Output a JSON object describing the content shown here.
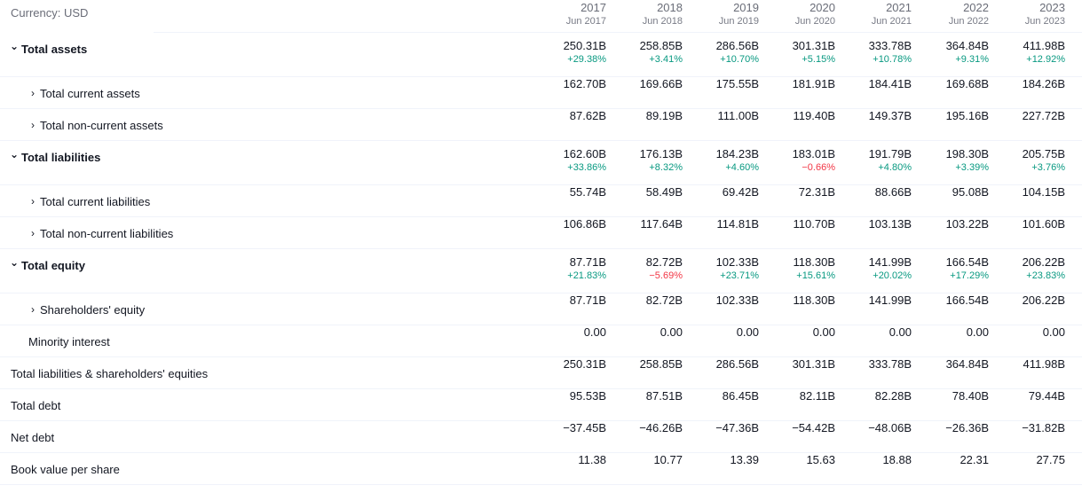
{
  "currency_label": "Currency: USD",
  "columns": [
    {
      "year": "2017",
      "date": "Jun 2017"
    },
    {
      "year": "2018",
      "date": "Jun 2018"
    },
    {
      "year": "2019",
      "date": "Jun 2019"
    },
    {
      "year": "2020",
      "date": "Jun 2020"
    },
    {
      "year": "2021",
      "date": "Jun 2021"
    },
    {
      "year": "2022",
      "date": "Jun 2022"
    },
    {
      "year": "2023",
      "date": "Jun 2023"
    }
  ],
  "colors": {
    "positive": "#089981",
    "negative": "#f23645"
  },
  "rows": [
    {
      "label": "Total assets",
      "bold": true,
      "indent": 0,
      "chevron": "chevron-down-icon",
      "values": [
        "250.31B",
        "258.85B",
        "286.56B",
        "301.31B",
        "333.78B",
        "364.84B",
        "411.98B"
      ],
      "changes": [
        "+29.38%",
        "+3.41%",
        "+10.70%",
        "+5.15%",
        "+10.78%",
        "+9.31%",
        "+12.92%"
      ]
    },
    {
      "label": "Total current assets",
      "bold": false,
      "indent": 1,
      "chevron": "chevron-right-icon",
      "values": [
        "162.70B",
        "169.66B",
        "175.55B",
        "181.91B",
        "184.41B",
        "169.68B",
        "184.26B"
      ]
    },
    {
      "label": "Total non-current assets",
      "bold": false,
      "indent": 1,
      "chevron": "chevron-right-icon",
      "values": [
        "87.62B",
        "89.19B",
        "111.00B",
        "119.40B",
        "149.37B",
        "195.16B",
        "227.72B"
      ]
    },
    {
      "label": "Total liabilities",
      "bold": true,
      "indent": 0,
      "chevron": "chevron-down-icon",
      "values": [
        "162.60B",
        "176.13B",
        "184.23B",
        "183.01B",
        "191.79B",
        "198.30B",
        "205.75B"
      ],
      "changes": [
        "+33.86%",
        "+8.32%",
        "+4.60%",
        "−0.66%",
        "+4.80%",
        "+3.39%",
        "+3.76%"
      ]
    },
    {
      "label": "Total current liabilities",
      "bold": false,
      "indent": 1,
      "chevron": "chevron-right-icon",
      "values": [
        "55.74B",
        "58.49B",
        "69.42B",
        "72.31B",
        "88.66B",
        "95.08B",
        "104.15B"
      ]
    },
    {
      "label": "Total non-current liabilities",
      "bold": false,
      "indent": 1,
      "chevron": "chevron-right-icon",
      "values": [
        "106.86B",
        "117.64B",
        "114.81B",
        "110.70B",
        "103.13B",
        "103.22B",
        "101.60B"
      ]
    },
    {
      "label": "Total equity",
      "bold": true,
      "indent": 0,
      "chevron": "chevron-down-icon",
      "values": [
        "87.71B",
        "82.72B",
        "102.33B",
        "118.30B",
        "141.99B",
        "166.54B",
        "206.22B"
      ],
      "changes": [
        "+21.83%",
        "−5.69%",
        "+23.71%",
        "+15.61%",
        "+20.02%",
        "+17.29%",
        "+23.83%"
      ]
    },
    {
      "label": "Shareholders' equity",
      "bold": false,
      "indent": 1,
      "chevron": "chevron-right-icon",
      "values": [
        "87.71B",
        "82.72B",
        "102.33B",
        "118.30B",
        "141.99B",
        "166.54B",
        "206.22B"
      ]
    },
    {
      "label": "Minority interest",
      "bold": false,
      "indent": 2,
      "chevron": null,
      "values": [
        "0.00",
        "0.00",
        "0.00",
        "0.00",
        "0.00",
        "0.00",
        "0.00"
      ]
    },
    {
      "label": "Total liabilities & shareholders' equities",
      "bold": false,
      "indent": 3,
      "chevron": null,
      "values": [
        "250.31B",
        "258.85B",
        "286.56B",
        "301.31B",
        "333.78B",
        "364.84B",
        "411.98B"
      ]
    },
    {
      "label": "Total debt",
      "bold": false,
      "indent": 3,
      "chevron": null,
      "values": [
        "95.53B",
        "87.51B",
        "86.45B",
        "82.11B",
        "82.28B",
        "78.40B",
        "79.44B"
      ]
    },
    {
      "label": "Net debt",
      "bold": false,
      "indent": 3,
      "chevron": null,
      "values": [
        "−37.45B",
        "−46.26B",
        "−47.36B",
        "−54.42B",
        "−48.06B",
        "−26.36B",
        "−31.82B"
      ]
    },
    {
      "label": "Book value per share",
      "bold": false,
      "indent": 3,
      "chevron": null,
      "values": [
        "11.38",
        "10.77",
        "13.39",
        "15.63",
        "18.88",
        "22.31",
        "27.75"
      ]
    }
  ]
}
